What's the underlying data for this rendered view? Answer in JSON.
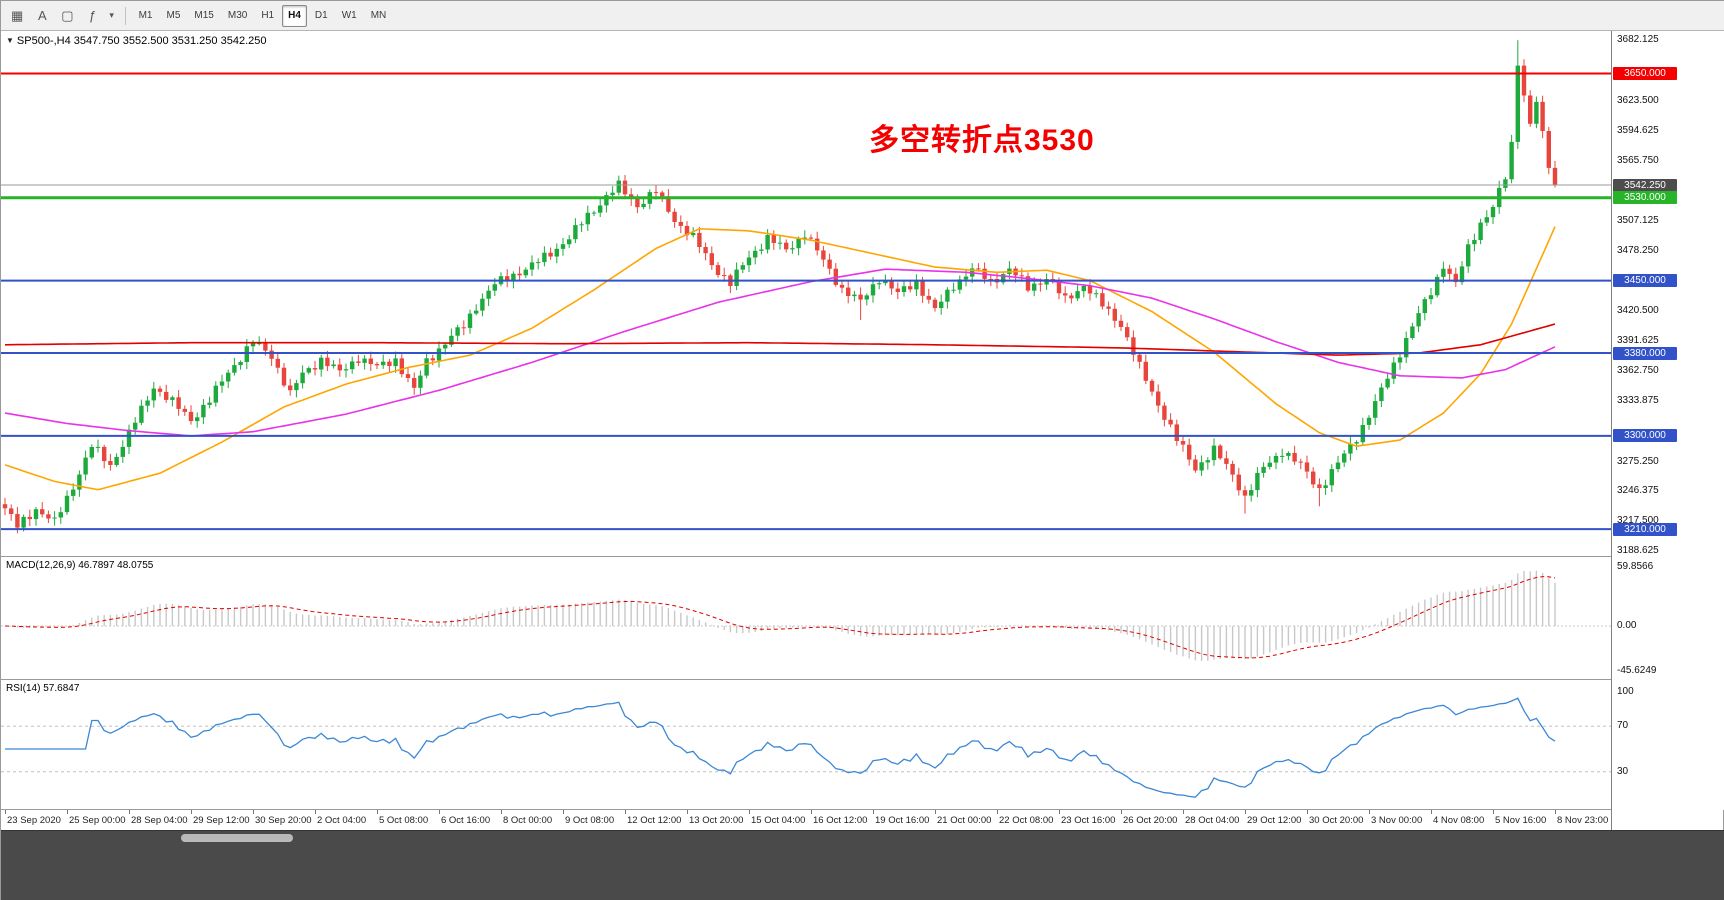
{
  "toolbar": {
    "icons": [
      {
        "name": "charts-grid-icon",
        "glyph": "▦"
      },
      {
        "name": "cursor-mode-icon",
        "glyph": "A"
      },
      {
        "name": "chart-window-icon",
        "glyph": "▢"
      },
      {
        "name": "indicators-icon",
        "glyph": "ƒ"
      },
      {
        "name": "dropdown-caret-icon",
        "glyph": "▾"
      }
    ],
    "timeframes": [
      "M1",
      "M5",
      "M15",
      "M30",
      "H1",
      "H4",
      "D1",
      "W1",
      "MN"
    ],
    "active_timeframe": "H4"
  },
  "chart_header": {
    "marker": "▼",
    "symbol_info": "SP500-,H4  3547.750 3552.500 3531.250 3542.250"
  },
  "annotation": {
    "text": "多空转折点3530"
  },
  "indicators": {
    "macd_label": "MACD(12,26,9) 46.7897 48.0755",
    "rsi_label": "RSI(14) 57.6847"
  },
  "colors": {
    "accent_red": "#F40000",
    "up": "#1DAA3C",
    "down": "#E8453C",
    "blue_level": "#3152C8",
    "green_level": "#28B428",
    "current": "#4D4D4D",
    "current_line": "#999999",
    "ma_fast": "#FFA500",
    "ma_mid": "#E833E8",
    "ma_slow": "#E00000",
    "macd_hist": "#C8C8C8",
    "macd_signal": "#E00000",
    "rsi": "#3B87D6",
    "rsi_levels": "#C0C0C0"
  },
  "price_scale": {
    "ticks": [
      {
        "price": 3682.125,
        "label": "3682.125"
      },
      {
        "price": 3623.5,
        "label": "3623.500"
      },
      {
        "price": 3594.625,
        "label": "3594.625"
      },
      {
        "price": 3565.75,
        "label": "3565.750"
      },
      {
        "price": 3507.125,
        "label": "3507.125"
      },
      {
        "price": 3478.25,
        "label": "3478.250"
      },
      {
        "price": 3420.5,
        "label": "3420.500"
      },
      {
        "price": 3391.625,
        "label": "3391.625"
      },
      {
        "price": 3362.75,
        "label": "3362.750"
      },
      {
        "price": 3333.875,
        "label": "3333.875"
      },
      {
        "price": 3275.25,
        "label": "3275.250"
      },
      {
        "price": 3246.375,
        "label": "3246.375"
      },
      {
        "price": 3217.5,
        "label": "3217.500"
      },
      {
        "price": 3188.625,
        "label": "3188.625"
      }
    ]
  },
  "macd_scale": [
    {
      "value": 59.8566,
      "label": "59.8566"
    },
    {
      "value": 0,
      "label": "0.00"
    },
    {
      "value": -45.6249,
      "label": "-45.6249"
    }
  ],
  "rsi_scale": [
    {
      "value": 100,
      "label": "100"
    },
    {
      "value": 70,
      "label": "70"
    },
    {
      "value": 30,
      "label": "30"
    }
  ],
  "time_axis": [
    "23 Sep 2020",
    "25 Sep 00:00",
    "28 Sep 04:00",
    "29 Sep 12:00",
    "30 Sep 20:00",
    "2 Oct 04:00",
    "5 Oct 08:00",
    "6 Oct 16:00",
    "8 Oct 00:00",
    "9 Oct 08:00",
    "12 Oct 12:00",
    "13 Oct 20:00",
    "15 Oct 04:00",
    "16 Oct 12:00",
    "19 Oct 16:00",
    "21 Oct 00:00",
    "22 Oct 08:00",
    "23 Oct 16:00",
    "26 Oct 20:00",
    "28 Oct 04:00",
    "29 Oct 12:00",
    "30 Oct 20:00",
    "3 Nov 00:00",
    "4 Nov 08:00",
    "5 Nov 16:00",
    "8 Nov 23:00"
  ],
  "chart_data": {
    "type": "candlestick",
    "symbol": "SP500-",
    "timeframe": "H4",
    "bars": 251,
    "bar_spacing_px": 6.2,
    "last_ohlc": {
      "open": 3547.75,
      "high": 3552.5,
      "low": 3531.25,
      "close": 3542.25
    },
    "price_axis": {
      "max": 3691,
      "min": 3184
    },
    "close_waypoints": [
      [
        0,
        3230
      ],
      [
        2,
        3212
      ],
      [
        5,
        3230
      ],
      [
        8,
        3216
      ],
      [
        11,
        3252
      ],
      [
        14,
        3290
      ],
      [
        17,
        3272
      ],
      [
        20,
        3302
      ],
      [
        24,
        3348
      ],
      [
        27,
        3332
      ],
      [
        30,
        3316
      ],
      [
        33,
        3334
      ],
      [
        36,
        3362
      ],
      [
        40,
        3390
      ],
      [
        43,
        3378
      ],
      [
        46,
        3340
      ],
      [
        48,
        3360
      ],
      [
        51,
        3374
      ],
      [
        54,
        3361
      ],
      [
        57,
        3376
      ],
      [
        60,
        3366
      ],
      [
        63,
        3374
      ],
      [
        66,
        3344
      ],
      [
        68,
        3372
      ],
      [
        71,
        3390
      ],
      [
        74,
        3406
      ],
      [
        76,
        3426
      ],
      [
        79,
        3446
      ],
      [
        82,
        3456
      ],
      [
        85,
        3464
      ],
      [
        88,
        3477
      ],
      [
        91,
        3491
      ],
      [
        94,
        3513
      ],
      [
        97,
        3531
      ],
      [
        99,
        3541
      ],
      [
        102,
        3523
      ],
      [
        105,
        3536
      ],
      [
        108,
        3509
      ],
      [
        111,
        3491
      ],
      [
        114,
        3466
      ],
      [
        117,
        3447
      ],
      [
        120,
        3473
      ],
      [
        123,
        3491
      ],
      [
        126,
        3479
      ],
      [
        129,
        3496
      ],
      [
        132,
        3469
      ],
      [
        135,
        3442
      ],
      [
        138,
        3429
      ],
      [
        141,
        3453
      ],
      [
        144,
        3437
      ],
      [
        147,
        3449
      ],
      [
        150,
        3421
      ],
      [
        153,
        3446
      ],
      [
        156,
        3461
      ],
      [
        159,
        3449
      ],
      [
        162,
        3461
      ],
      [
        165,
        3443
      ],
      [
        168,
        3453
      ],
      [
        171,
        3431
      ],
      [
        174,
        3446
      ],
      [
        177,
        3426
      ],
      [
        180,
        3408
      ],
      [
        183,
        3366
      ],
      [
        186,
        3331
      ],
      [
        189,
        3296
      ],
      [
        192,
        3269
      ],
      [
        195,
        3286
      ],
      [
        198,
        3263
      ],
      [
        200,
        3241
      ],
      [
        203,
        3269
      ],
      [
        206,
        3286
      ],
      [
        209,
        3271
      ],
      [
        212,
        3249
      ],
      [
        215,
        3273
      ],
      [
        218,
        3299
      ],
      [
        221,
        3331
      ],
      [
        224,
        3369
      ],
      [
        227,
        3406
      ],
      [
        230,
        3439
      ],
      [
        232,
        3466
      ],
      [
        234,
        3446
      ],
      [
        236,
        3481
      ],
      [
        238,
        3506
      ],
      [
        240,
        3521
      ],
      [
        242,
        3549
      ],
      [
        243,
        3581
      ],
      [
        244,
        3662
      ],
      [
        245,
        3630
      ],
      [
        246,
        3601
      ],
      [
        247,
        3623
      ],
      [
        248,
        3589
      ],
      [
        249,
        3561
      ],
      [
        250,
        3542.25
      ]
    ],
    "wick_overrides": [
      [
        2,
        null,
        3206
      ],
      [
        138,
        null,
        3412
      ],
      [
        200,
        null,
        3225
      ],
      [
        212,
        null,
        3232
      ],
      [
        244,
        3682.125,
        null
      ]
    ],
    "moving_averages": [
      {
        "name": "ma-fast-orange",
        "color_key": "ma_fast",
        "waypoints": [
          [
            0,
            3272
          ],
          [
            8,
            3256
          ],
          [
            15,
            3248
          ],
          [
            25,
            3264
          ],
          [
            35,
            3294
          ],
          [
            45,
            3328
          ],
          [
            55,
            3350
          ],
          [
            65,
            3366
          ],
          [
            75,
            3378
          ],
          [
            85,
            3404
          ],
          [
            95,
            3441
          ],
          [
            105,
            3481
          ],
          [
            112,
            3500
          ],
          [
            120,
            3498
          ],
          [
            130,
            3489
          ],
          [
            140,
            3476
          ],
          [
            150,
            3463
          ],
          [
            160,
            3458
          ],
          [
            168,
            3460
          ],
          [
            175,
            3450
          ],
          [
            185,
            3420
          ],
          [
            195,
            3381
          ],
          [
            205,
            3331
          ],
          [
            212,
            3303
          ],
          [
            218,
            3290
          ],
          [
            225,
            3296
          ],
          [
            232,
            3322
          ],
          [
            238,
            3360
          ],
          [
            243,
            3408
          ],
          [
            246,
            3448
          ],
          [
            250,
            3502
          ]
        ]
      },
      {
        "name": "ma-mid-magenta",
        "color_key": "ma_mid",
        "waypoints": [
          [
            0,
            3322
          ],
          [
            10,
            3312
          ],
          [
            20,
            3305
          ],
          [
            30,
            3300
          ],
          [
            40,
            3304
          ],
          [
            55,
            3321
          ],
          [
            70,
            3344
          ],
          [
            85,
            3371
          ],
          [
            100,
            3401
          ],
          [
            115,
            3429
          ],
          [
            130,
            3449
          ],
          [
            142,
            3461
          ],
          [
            155,
            3458
          ],
          [
            165,
            3452
          ],
          [
            175,
            3445
          ],
          [
            185,
            3433
          ],
          [
            195,
            3413
          ],
          [
            205,
            3391
          ],
          [
            215,
            3371
          ],
          [
            225,
            3358
          ],
          [
            235,
            3356
          ],
          [
            242,
            3364
          ],
          [
            250,
            3386
          ]
        ]
      },
      {
        "name": "ma-slow-red",
        "color_key": "ma_slow",
        "waypoints": [
          [
            0,
            3388
          ],
          [
            30,
            3390
          ],
          [
            60,
            3390
          ],
          [
            90,
            3389
          ],
          [
            120,
            3390
          ],
          [
            150,
            3388
          ],
          [
            180,
            3385
          ],
          [
            200,
            3381
          ],
          [
            215,
            3378
          ],
          [
            228,
            3380
          ],
          [
            238,
            3388
          ],
          [
            250,
            3408
          ]
        ]
      }
    ],
    "horizontal_levels": [
      {
        "price": 3650.0,
        "label": "3650.000",
        "color_key": "accent_red",
        "line_width": 2
      },
      {
        "price": 3542.25,
        "label": "3542.250",
        "color_key": "current",
        "line_color_key": "current_line",
        "line_width": 1
      },
      {
        "price": 3530.0,
        "label": "3530.000",
        "color_key": "green_level",
        "line_width": 3
      },
      {
        "price": 3450.0,
        "label": "3450.000",
        "color_key": "blue_level",
        "line_width": 2
      },
      {
        "price": 3380.0,
        "label": "3380.000",
        "color_key": "blue_level",
        "line_width": 2
      },
      {
        "price": 3300.0,
        "label": "3300.000",
        "color_key": "blue_level",
        "line_width": 2
      },
      {
        "price": 3210.0,
        "label": "3210.000",
        "color_key": "blue_level",
        "line_width": 2
      }
    ],
    "macd": {
      "params": "12,26,9",
      "value": 46.7897,
      "signal": 48.0755,
      "scale_max": 59.8566,
      "scale_min": -45.6249
    },
    "rsi": {
      "period": 14,
      "value": 57.6847,
      "levels": [
        70,
        30
      ],
      "scale": [
        100,
        70,
        30
      ]
    }
  }
}
